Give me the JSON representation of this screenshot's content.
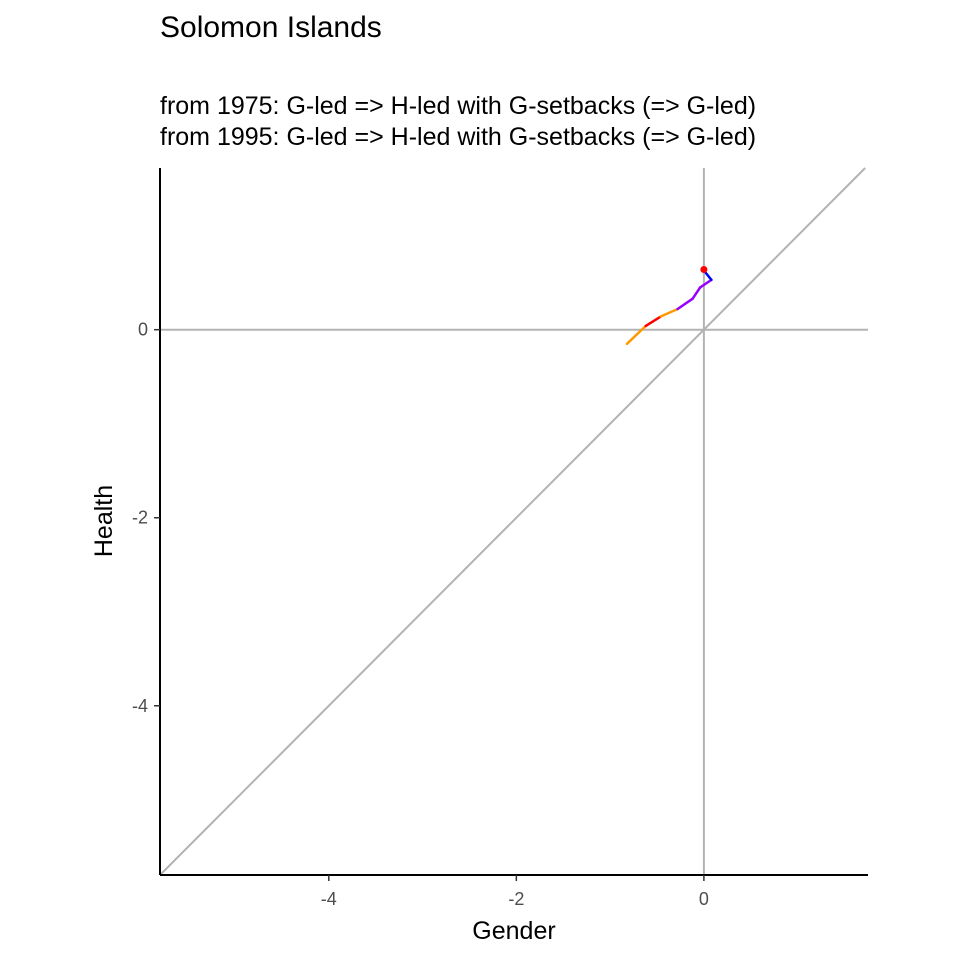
{
  "chart_data": {
    "type": "line",
    "title": "Solomon Islands",
    "subtitle_lines": [
      "from 1975:  G-led => H-led with G-setbacks (=> G-led)",
      "from 1995:  G-led => H-led with G-setbacks (=> G-led)"
    ],
    "xlabel": "Gender",
    "ylabel": "Health",
    "xlim": [
      -5.8,
      1.75
    ],
    "ylim": [
      -5.8,
      1.72
    ],
    "x_ticks": [
      -4,
      -2,
      0
    ],
    "y_ticks": [
      0,
      -2,
      -4
    ],
    "x_tick_labels": [
      "-4",
      "-2",
      "0"
    ],
    "y_tick_labels": [
      "0",
      "-2",
      "-4"
    ],
    "grid": false,
    "reference_lines": [
      {
        "type": "hline",
        "y": 0,
        "color": "#b3b3b3"
      },
      {
        "type": "vline",
        "x": 0,
        "color": "#b3b3b3"
      },
      {
        "type": "diagonal",
        "slope": 1,
        "intercept": 0,
        "color": "#b3b3b3"
      }
    ],
    "trajectory": [
      {
        "x": -0.82,
        "y": -0.15,
        "color": "#ff9900"
      },
      {
        "x": -0.62,
        "y": 0.04,
        "color": "#ff9900"
      },
      {
        "x": -0.46,
        "y": 0.14,
        "color": "#ff0000"
      },
      {
        "x": -0.28,
        "y": 0.22,
        "color": "#ff9900"
      },
      {
        "x": -0.12,
        "y": 0.33,
        "color": "#9900ff"
      },
      {
        "x": -0.04,
        "y": 0.45,
        "color": "#9900ff"
      },
      {
        "x": 0.08,
        "y": 0.53,
        "color": "#9900ff"
      },
      {
        "x": 0.0,
        "y": 0.63,
        "color": "#0000ff"
      }
    ],
    "end_point": {
      "x": 0.0,
      "y": 0.64,
      "color": "#ff0000"
    }
  }
}
